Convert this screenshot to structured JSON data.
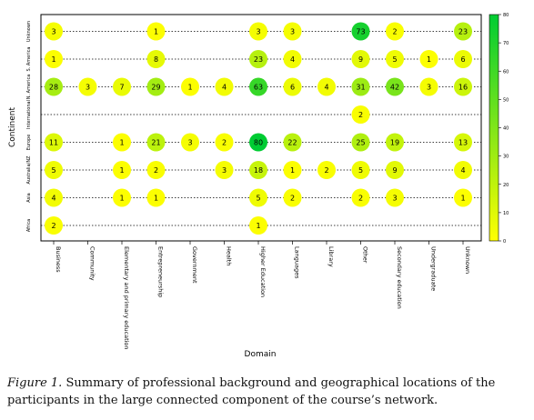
{
  "chart_data": {
    "type": "scatter",
    "subtype": "bubble-matrix",
    "xlabel": "Domain",
    "ylabel": "Continent",
    "x_categories": [
      "Business",
      "Community",
      "Elementary and primary education",
      "Entrepreneurship",
      "Government",
      "Health",
      "Higher Education",
      "Languages",
      "Library",
      "Other",
      "Secondary education",
      "Undergraduate",
      "Unknown"
    ],
    "y_categories": [
      "Africa",
      "Asia",
      "Australia/NZ",
      "Europe",
      "International",
      "N. America",
      "S. America",
      "Unknown"
    ],
    "y_tick_labels": [
      "Africa",
      "Asia",
      "Australia/NZ",
      "Europe",
      "International",
      "N. America",
      "S. America",
      "Unknown"
    ],
    "points": [
      {
        "x": "Business",
        "y": "Unknown",
        "value": 3
      },
      {
        "x": "Entrepreneurship",
        "y": "Unknown",
        "value": 1
      },
      {
        "x": "Higher Education",
        "y": "Unknown",
        "value": 3
      },
      {
        "x": "Languages",
        "y": "Unknown",
        "value": 3
      },
      {
        "x": "Other",
        "y": "Unknown",
        "value": 73
      },
      {
        "x": "Secondary education",
        "y": "Unknown",
        "value": 2
      },
      {
        "x": "Unknown",
        "y": "Unknown",
        "value": 23
      },
      {
        "x": "Business",
        "y": "S. America",
        "value": 1
      },
      {
        "x": "Entrepreneurship",
        "y": "S. America",
        "value": 8
      },
      {
        "x": "Higher Education",
        "y": "S. America",
        "value": 23
      },
      {
        "x": "Languages",
        "y": "S. America",
        "value": 4
      },
      {
        "x": "Other",
        "y": "S. America",
        "value": 9
      },
      {
        "x": "Secondary education",
        "y": "S. America",
        "value": 5
      },
      {
        "x": "Undergraduate",
        "y": "S. America",
        "value": 1
      },
      {
        "x": "Unknown",
        "y": "S. America",
        "value": 6
      },
      {
        "x": "Business",
        "y": "N. America",
        "value": 28
      },
      {
        "x": "Community",
        "y": "N. America",
        "value": 3
      },
      {
        "x": "Elementary and primary education",
        "y": "N. America",
        "value": 7
      },
      {
        "x": "Entrepreneurship",
        "y": "N. America",
        "value": 29
      },
      {
        "x": "Government",
        "y": "N. America",
        "value": 1
      },
      {
        "x": "Health",
        "y": "N. America",
        "value": 4
      },
      {
        "x": "Higher Education",
        "y": "N. America",
        "value": 63
      },
      {
        "x": "Languages",
        "y": "N. America",
        "value": 6
      },
      {
        "x": "Library",
        "y": "N. America",
        "value": 4
      },
      {
        "x": "Other",
        "y": "N. America",
        "value": 31
      },
      {
        "x": "Secondary education",
        "y": "N. America",
        "value": 42
      },
      {
        "x": "Undergraduate",
        "y": "N. America",
        "value": 3
      },
      {
        "x": "Unknown",
        "y": "N. America",
        "value": 16
      },
      {
        "x": "Other",
        "y": "International",
        "value": 2
      },
      {
        "x": "Business",
        "y": "Europe",
        "value": 11
      },
      {
        "x": "Elementary and primary education",
        "y": "Europe",
        "value": 1
      },
      {
        "x": "Entrepreneurship",
        "y": "Europe",
        "value": 21
      },
      {
        "x": "Government",
        "y": "Europe",
        "value": 3
      },
      {
        "x": "Health",
        "y": "Europe",
        "value": 2
      },
      {
        "x": "Higher Education",
        "y": "Europe",
        "value": 80
      },
      {
        "x": "Languages",
        "y": "Europe",
        "value": 22
      },
      {
        "x": "Other",
        "y": "Europe",
        "value": 25
      },
      {
        "x": "Secondary education",
        "y": "Europe",
        "value": 19
      },
      {
        "x": "Unknown",
        "y": "Europe",
        "value": 13
      },
      {
        "x": "Business",
        "y": "Australia/NZ",
        "value": 5
      },
      {
        "x": "Elementary and primary education",
        "y": "Australia/NZ",
        "value": 1
      },
      {
        "x": "Entrepreneurship",
        "y": "Australia/NZ",
        "value": 2
      },
      {
        "x": "Health",
        "y": "Australia/NZ",
        "value": 3
      },
      {
        "x": "Higher Education",
        "y": "Australia/NZ",
        "value": 18
      },
      {
        "x": "Languages",
        "y": "Australia/NZ",
        "value": 1
      },
      {
        "x": "Library",
        "y": "Australia/NZ",
        "value": 2
      },
      {
        "x": "Other",
        "y": "Australia/NZ",
        "value": 5
      },
      {
        "x": "Secondary education",
        "y": "Australia/NZ",
        "value": 9
      },
      {
        "x": "Unknown",
        "y": "Australia/NZ",
        "value": 4
      },
      {
        "x": "Business",
        "y": "Asia",
        "value": 4
      },
      {
        "x": "Elementary and primary education",
        "y": "Asia",
        "value": 1
      },
      {
        "x": "Entrepreneurship",
        "y": "Asia",
        "value": 1
      },
      {
        "x": "Higher Education",
        "y": "Asia",
        "value": 5
      },
      {
        "x": "Languages",
        "y": "Asia",
        "value": 2
      },
      {
        "x": "Other",
        "y": "Asia",
        "value": 2
      },
      {
        "x": "Secondary education",
        "y": "Asia",
        "value": 3
      },
      {
        "x": "Unknown",
        "y": "Asia",
        "value": 1
      },
      {
        "x": "Business",
        "y": "Africa",
        "value": 2
      },
      {
        "x": "Higher Education",
        "y": "Africa",
        "value": 1
      }
    ],
    "colorbar": {
      "ticks": [
        0,
        10,
        20,
        30,
        40,
        50,
        60,
        70,
        80
      ],
      "range": [
        0,
        80
      ],
      "low_color": "#ffff00",
      "high_color": "#00cc33"
    },
    "grid": true,
    "legend": "colorbar-right"
  },
  "caption": {
    "figure_label": "Figure 1.",
    "text": " Summary of professional background and geographical locations of the participants in the large connected component of the course’s network."
  }
}
